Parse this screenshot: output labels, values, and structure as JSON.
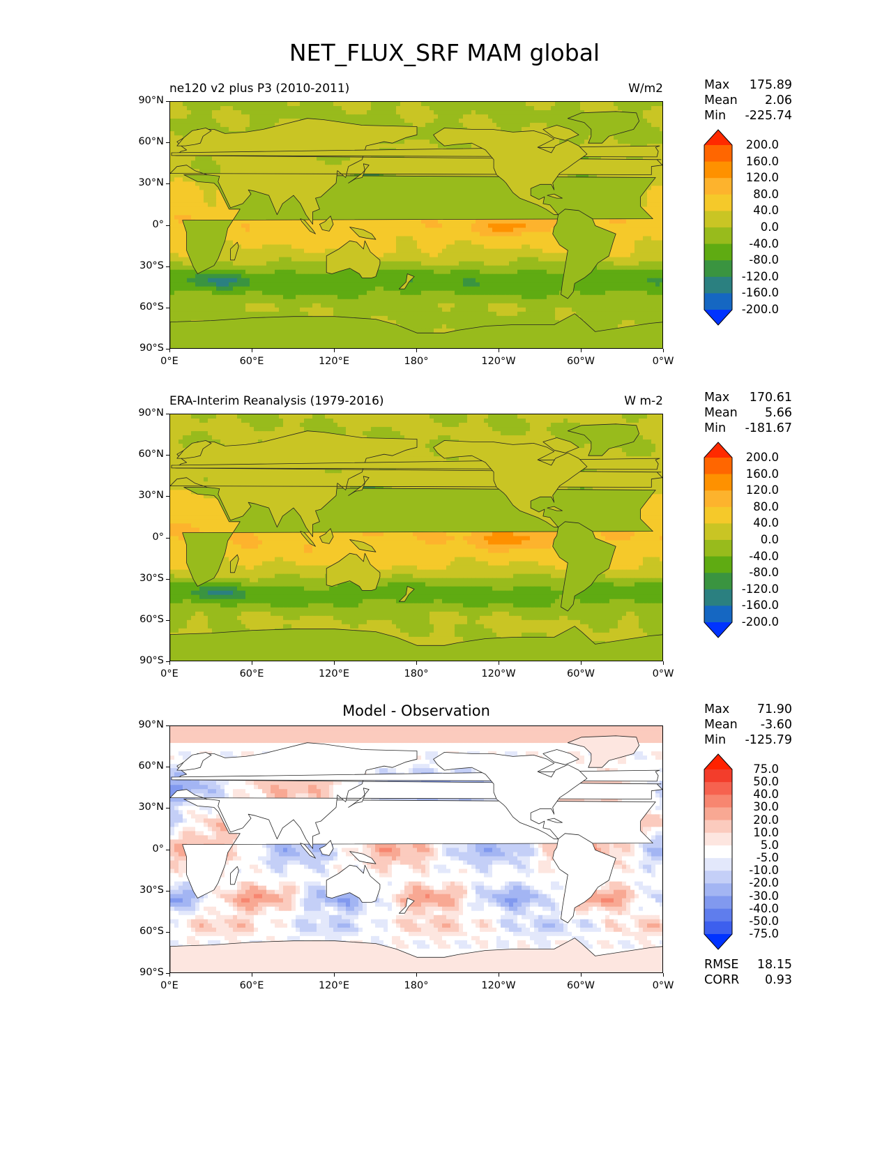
{
  "figure": {
    "title": "NET_FLUX_SRF MAM global"
  },
  "panels": [
    {
      "name": "model",
      "subtitle_left": "ne120 v2 plus P3 (2010-2011)",
      "subtitle_right": "W/m2",
      "stats": {
        "max_label": "Max",
        "max": "175.89",
        "mean_label": "Mean",
        "mean": "2.06",
        "min_label": "Min",
        "min": "-225.74"
      },
      "colorbar": {
        "labels": [
          "200.0",
          "160.0",
          "120.0",
          "80.0",
          "40.0",
          "0.0",
          "-40.0",
          "-80.0",
          "-120.0",
          "-160.0",
          "-200.0"
        ],
        "colors": [
          "#ff2a00",
          "#ff6600",
          "#fe9100",
          "#fdb32d",
          "#f5c92a",
          "#c9c524",
          "#98bb1c",
          "#5fab12",
          "#3a9440",
          "#2b8080",
          "#1567c2",
          "#0033ff"
        ]
      }
    },
    {
      "name": "observation",
      "subtitle_left": "ERA-Interim Reanalysis (1979-2016)",
      "subtitle_right": "W m-2",
      "stats": {
        "max_label": "Max",
        "max": "170.61",
        "mean_label": "Mean",
        "mean": "5.66",
        "min_label": "Min",
        "min": "-181.67"
      },
      "colorbar": {
        "labels": [
          "200.0",
          "160.0",
          "120.0",
          "80.0",
          "40.0",
          "0.0",
          "-40.0",
          "-80.0",
          "-120.0",
          "-160.0",
          "-200.0"
        ],
        "colors": [
          "#ff2a00",
          "#ff6600",
          "#fe9100",
          "#fdb32d",
          "#f5c92a",
          "#c9c524",
          "#98bb1c",
          "#5fab12",
          "#3a9440",
          "#2b8080",
          "#1567c2",
          "#0033ff"
        ]
      }
    },
    {
      "name": "difference",
      "subtitle_center": "Model - Observation",
      "stats": {
        "max_label": "Max",
        "max": "71.90",
        "mean_label": "Mean",
        "mean": "-3.60",
        "min_label": "Min",
        "min": "-125.79"
      },
      "extra": {
        "rmse_label": "RMSE",
        "rmse": "18.15",
        "corr_label": "CORR",
        "corr": "0.93"
      },
      "colorbar": {
        "labels": [
          "75.0",
          "50.0",
          "40.0",
          "30.0",
          "20.0",
          "10.0",
          "5.0",
          "-5.0",
          "-10.0",
          "-20.0",
          "-30.0",
          "-40.0",
          "-50.0",
          "-75.0"
        ],
        "colors": [
          "#ff2200",
          "#f33d2b",
          "#f6624f",
          "#f78670",
          "#f8a893",
          "#fbcbbe",
          "#fde6e0",
          "#ffffff",
          "#e3e8fb",
          "#c4cff7",
          "#a3b5f3",
          "#8199ef",
          "#5f7ded",
          "#3d5fee",
          "#0033ff"
        ]
      }
    }
  ],
  "axes": {
    "lat_ticks": [
      "90°N",
      "60°N",
      "30°N",
      "0°",
      "30°S",
      "60°S",
      "90°S"
    ],
    "lon_ticks": [
      "0°E",
      "60°E",
      "120°E",
      "180°",
      "120°W",
      "60°W",
      "0°W"
    ]
  }
}
